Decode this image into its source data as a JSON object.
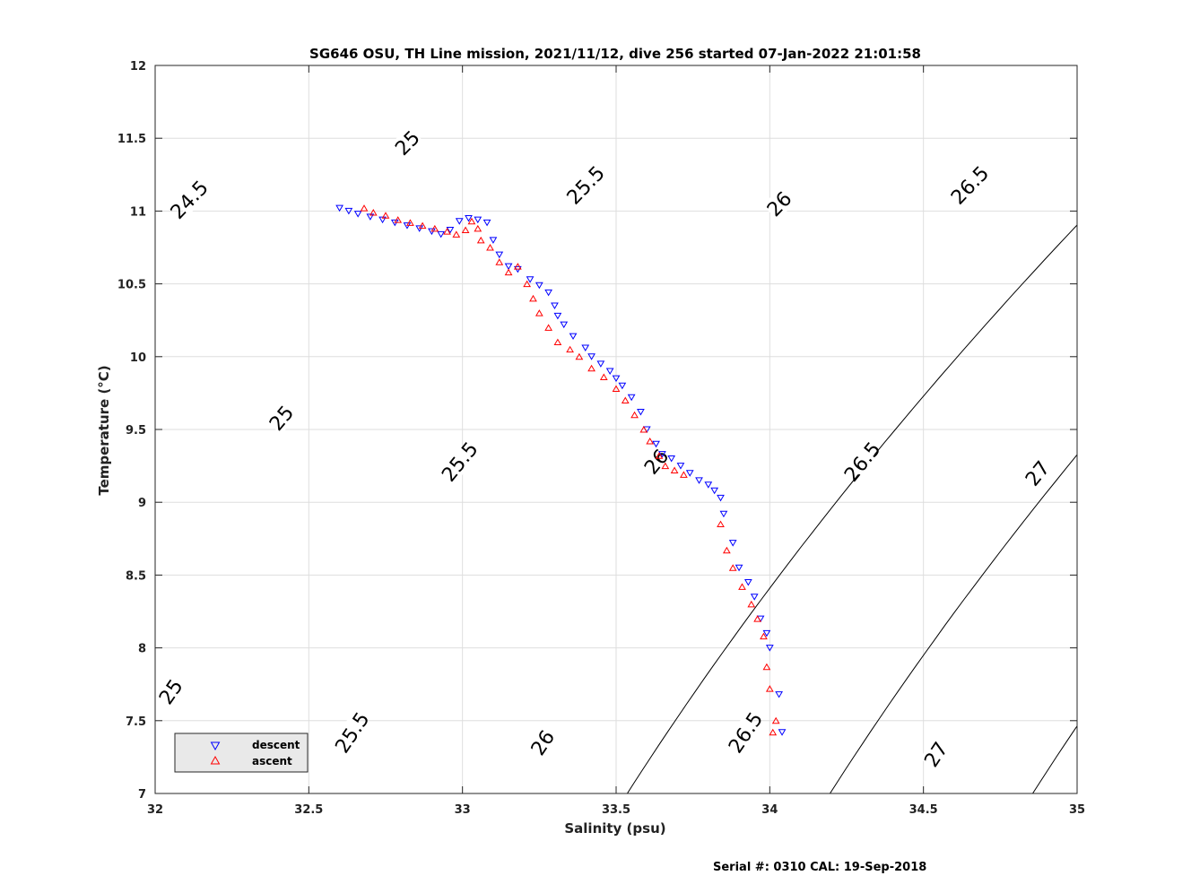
{
  "chart_data": {
    "type": "scatter",
    "title": "SG646 OSU, TH Line mission, 2021/11/12, dive 256 started 07-Jan-2022 21:01:58",
    "xlabel": "Salinity (psu)",
    "ylabel": "Temperature (°C)",
    "xlim": [
      32,
      35
    ],
    "ylim": [
      7,
      12
    ],
    "xticks": [
      32,
      32.5,
      33,
      33.5,
      34,
      34.5,
      35
    ],
    "yticks": [
      7,
      7.5,
      8,
      8.5,
      9,
      9.5,
      10,
      10.5,
      11,
      11.5,
      12
    ],
    "xtick_labels": [
      "32",
      "32.5",
      "33",
      "33.5",
      "34",
      "34.5",
      "35"
    ],
    "ytick_labels": [
      "7",
      "7.5",
      "8",
      "8.5",
      "9",
      "9.5",
      "10",
      "10.5",
      "11",
      "11.5",
      "12"
    ],
    "grid": true,
    "legend_position": "bottom-left",
    "density_contours": {
      "levels": [
        24.5,
        25,
        25.5,
        26,
        26.5,
        27
      ],
      "label_text": [
        "24.5",
        "25",
        "25.5",
        "26",
        "26.5",
        "27"
      ],
      "labels": [
        {
          "text": "24.5",
          "s": 32.11,
          "t": 11.08
        },
        {
          "text": "25",
          "s": 32.82,
          "t": 11.47
        },
        {
          "text": "25",
          "s": 32.41,
          "t": 9.58
        },
        {
          "text": "25",
          "s": 32.05,
          "t": 7.7
        },
        {
          "text": "25.5",
          "s": 33.4,
          "t": 11.18
        },
        {
          "text": "25.5",
          "s": 32.99,
          "t": 9.28
        },
        {
          "text": "25.5",
          "s": 32.64,
          "t": 7.42
        },
        {
          "text": "26",
          "s": 34.03,
          "t": 11.05
        },
        {
          "text": "26",
          "s": 33.63,
          "t": 9.28
        },
        {
          "text": "26",
          "s": 33.26,
          "t": 7.35
        },
        {
          "text": "26.5",
          "s": 34.65,
          "t": 11.18
        },
        {
          "text": "26.5",
          "s": 34.3,
          "t": 9.28
        },
        {
          "text": "26.5",
          "s": 33.92,
          "t": 7.42
        },
        {
          "text": "27",
          "s": 34.87,
          "t": 9.2
        },
        {
          "text": "27",
          "s": 34.54,
          "t": 7.27
        }
      ]
    },
    "series": [
      {
        "name": "descent",
        "color": "#0000ff",
        "marker": "triangle-down",
        "points": [
          [
            32.6,
            11.02
          ],
          [
            32.63,
            11.0
          ],
          [
            32.66,
            10.98
          ],
          [
            32.7,
            10.96
          ],
          [
            32.74,
            10.94
          ],
          [
            32.78,
            10.92
          ],
          [
            32.82,
            10.9
          ],
          [
            32.86,
            10.88
          ],
          [
            32.9,
            10.86
          ],
          [
            32.93,
            10.84
          ],
          [
            32.96,
            10.87
          ],
          [
            32.99,
            10.93
          ],
          [
            33.02,
            10.95
          ],
          [
            33.05,
            10.94
          ],
          [
            33.08,
            10.92
          ],
          [
            33.1,
            10.8
          ],
          [
            33.12,
            10.7
          ],
          [
            33.15,
            10.62
          ],
          [
            33.18,
            10.6
          ],
          [
            33.22,
            10.53
          ],
          [
            33.25,
            10.49
          ],
          [
            33.28,
            10.44
          ],
          [
            33.3,
            10.35
          ],
          [
            33.31,
            10.28
          ],
          [
            33.33,
            10.22
          ],
          [
            33.36,
            10.14
          ],
          [
            33.4,
            10.06
          ],
          [
            33.42,
            10.0
          ],
          [
            33.45,
            9.95
          ],
          [
            33.48,
            9.9
          ],
          [
            33.5,
            9.85
          ],
          [
            33.52,
            9.8
          ],
          [
            33.55,
            9.72
          ],
          [
            33.58,
            9.62
          ],
          [
            33.6,
            9.5
          ],
          [
            33.63,
            9.4
          ],
          [
            33.65,
            9.33
          ],
          [
            33.68,
            9.3
          ],
          [
            33.71,
            9.25
          ],
          [
            33.74,
            9.2
          ],
          [
            33.77,
            9.15
          ],
          [
            33.8,
            9.12
          ],
          [
            33.82,
            9.08
          ],
          [
            33.84,
            9.03
          ],
          [
            33.85,
            8.92
          ],
          [
            33.88,
            8.72
          ],
          [
            33.9,
            8.55
          ],
          [
            33.93,
            8.45
          ],
          [
            33.95,
            8.35
          ],
          [
            33.97,
            8.2
          ],
          [
            33.99,
            8.1
          ],
          [
            34.0,
            8.0
          ],
          [
            34.03,
            7.68
          ],
          [
            34.04,
            7.42
          ]
        ]
      },
      {
        "name": "ascent",
        "color": "#ff0000",
        "marker": "triangle-up",
        "points": [
          [
            32.68,
            11.02
          ],
          [
            32.71,
            10.99
          ],
          [
            32.75,
            10.97
          ],
          [
            32.79,
            10.94
          ],
          [
            32.83,
            10.92
          ],
          [
            32.87,
            10.9
          ],
          [
            32.91,
            10.88
          ],
          [
            32.95,
            10.86
          ],
          [
            32.98,
            10.84
          ],
          [
            33.01,
            10.87
          ],
          [
            33.03,
            10.93
          ],
          [
            33.05,
            10.88
          ],
          [
            33.06,
            10.8
          ],
          [
            33.09,
            10.75
          ],
          [
            33.12,
            10.65
          ],
          [
            33.15,
            10.58
          ],
          [
            33.18,
            10.62
          ],
          [
            33.21,
            10.5
          ],
          [
            33.23,
            10.4
          ],
          [
            33.25,
            10.3
          ],
          [
            33.28,
            10.2
          ],
          [
            33.31,
            10.1
          ],
          [
            33.35,
            10.05
          ],
          [
            33.38,
            10.0
          ],
          [
            33.42,
            9.92
          ],
          [
            33.46,
            9.86
          ],
          [
            33.5,
            9.78
          ],
          [
            33.53,
            9.7
          ],
          [
            33.56,
            9.6
          ],
          [
            33.59,
            9.5
          ],
          [
            33.61,
            9.42
          ],
          [
            33.64,
            9.32
          ],
          [
            33.66,
            9.25
          ],
          [
            33.69,
            9.22
          ],
          [
            33.72,
            9.19
          ],
          [
            33.84,
            8.85
          ],
          [
            33.86,
            8.67
          ],
          [
            33.88,
            8.55
          ],
          [
            33.91,
            8.42
          ],
          [
            33.94,
            8.3
          ],
          [
            33.96,
            8.2
          ],
          [
            33.98,
            8.08
          ],
          [
            33.99,
            7.87
          ],
          [
            34.0,
            7.72
          ],
          [
            34.02,
            7.5
          ],
          [
            34.01,
            7.42
          ]
        ]
      }
    ]
  },
  "legend": {
    "descent_label": "descent",
    "ascent_label": "ascent"
  },
  "footer": {
    "serial": "Serial #: 0310  CAL: 19-Sep-2018"
  }
}
